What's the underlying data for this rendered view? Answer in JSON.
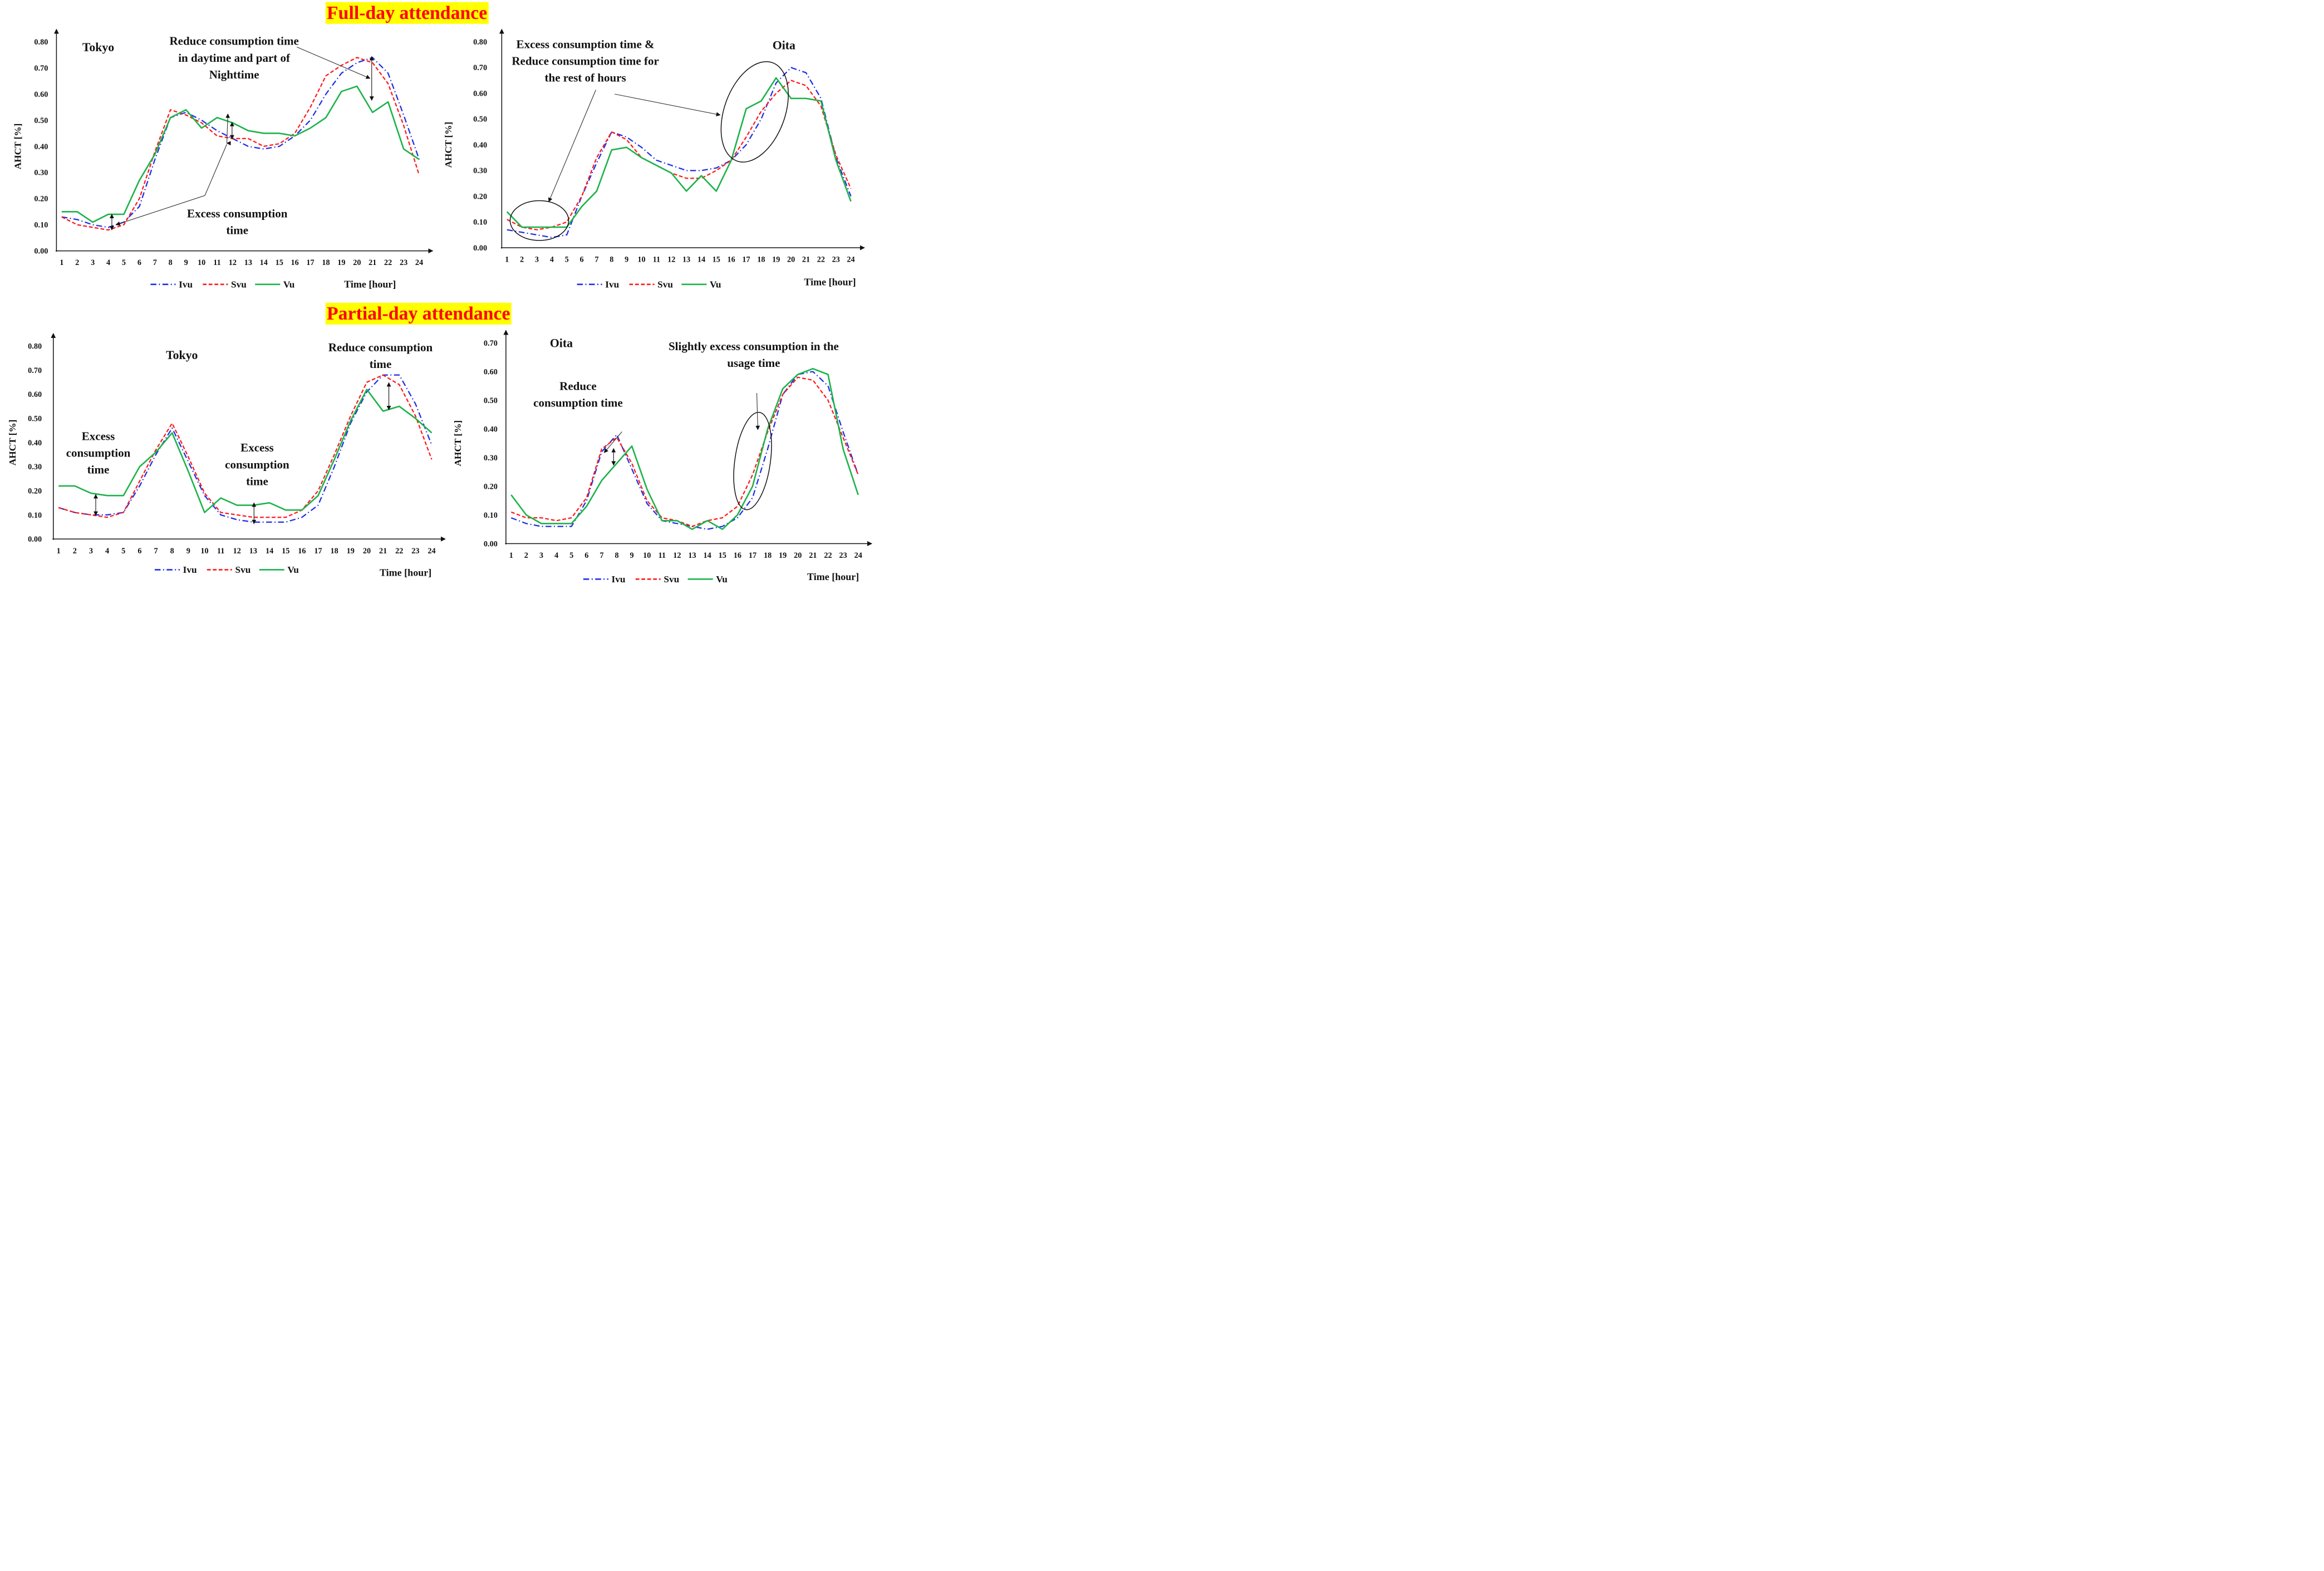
{
  "headers": {
    "full_day": "Full-day attendance",
    "partial_day": "Partial-day attendance"
  },
  "legend": {
    "ivu": "Ivu",
    "svu": "Svu",
    "vu": "Vu"
  },
  "colors": {
    "ivu": "#1f2ee8",
    "svu": "#ff1a1a",
    "vu": "#1db34a"
  },
  "chart_data": [
    {
      "type": "line",
      "title": "Tokyo",
      "group": "Full-day attendance",
      "ylabel": "AHCT [%]",
      "xlabel": "Time [hour]",
      "x": [
        1,
        2,
        3,
        4,
        5,
        6,
        7,
        8,
        9,
        10,
        11,
        12,
        13,
        14,
        15,
        16,
        17,
        18,
        19,
        20,
        21,
        22,
        23,
        24
      ],
      "ylim": [
        0,
        0.8
      ],
      "yticks": [
        "0.00",
        "0.10",
        "0.20",
        "0.30",
        "0.40",
        "0.50",
        "0.60",
        "0.70",
        "0.80"
      ],
      "series": [
        {
          "name": "Ivu",
          "values": [
            0.13,
            0.12,
            0.1,
            0.09,
            0.11,
            0.17,
            0.35,
            0.51,
            0.53,
            0.5,
            0.46,
            0.43,
            0.4,
            0.39,
            0.4,
            0.44,
            0.5,
            0.6,
            0.68,
            0.72,
            0.74,
            0.68,
            0.52,
            0.35
          ]
        },
        {
          "name": "Svu",
          "values": [
            0.13,
            0.1,
            0.09,
            0.08,
            0.1,
            0.2,
            0.38,
            0.54,
            0.52,
            0.49,
            0.44,
            0.43,
            0.43,
            0.4,
            0.41,
            0.45,
            0.55,
            0.67,
            0.71,
            0.74,
            0.72,
            0.64,
            0.48,
            0.29
          ]
        },
        {
          "name": "Vu",
          "values": [
            0.15,
            0.15,
            0.11,
            0.14,
            0.14,
            0.27,
            0.37,
            0.51,
            0.54,
            0.47,
            0.51,
            0.49,
            0.46,
            0.45,
            0.45,
            0.44,
            0.47,
            0.51,
            0.61,
            0.63,
            0.53,
            0.57,
            0.39,
            0.35
          ]
        }
      ],
      "annotations": [
        {
          "lines": [
            "Reduce consumption time",
            "in daytime and part of",
            "Nighttime"
          ]
        },
        {
          "lines": [
            "Excess consumption",
            "time"
          ]
        }
      ]
    },
    {
      "type": "line",
      "title": "Oita",
      "group": "Full-day attendance",
      "ylabel": "AHCT [%]",
      "xlabel": "Time [hour]",
      "x": [
        1,
        2,
        3,
        4,
        5,
        6,
        7,
        8,
        9,
        10,
        11,
        12,
        13,
        14,
        15,
        16,
        17,
        18,
        19,
        20,
        21,
        22,
        23,
        24
      ],
      "ylim": [
        0,
        0.8
      ],
      "yticks": [
        "0.00",
        "0.10",
        "0.20",
        "0.30",
        "0.40",
        "0.50",
        "0.60",
        "0.70",
        "0.80"
      ],
      "series": [
        {
          "name": "Ivu",
          "values": [
            0.07,
            0.06,
            0.05,
            0.04,
            0.05,
            0.2,
            0.33,
            0.45,
            0.43,
            0.39,
            0.34,
            0.32,
            0.3,
            0.3,
            0.31,
            0.34,
            0.4,
            0.5,
            0.64,
            0.7,
            0.68,
            0.58,
            0.35,
            0.2
          ]
        },
        {
          "name": "Svu",
          "values": [
            0.11,
            0.08,
            0.07,
            0.08,
            0.1,
            0.2,
            0.35,
            0.45,
            0.42,
            0.35,
            0.32,
            0.29,
            0.27,
            0.27,
            0.3,
            0.34,
            0.43,
            0.53,
            0.6,
            0.65,
            0.63,
            0.55,
            0.36,
            0.23
          ]
        },
        {
          "name": "Vu",
          "values": [
            0.14,
            0.08,
            0.08,
            0.08,
            0.08,
            0.16,
            0.22,
            0.38,
            0.39,
            0.35,
            0.32,
            0.29,
            0.22,
            0.28,
            0.22,
            0.34,
            0.54,
            0.57,
            0.66,
            0.58,
            0.58,
            0.57,
            0.34,
            0.18
          ]
        }
      ],
      "annotations": [
        {
          "lines": [
            "Excess consumption time &",
            "Reduce consumption time for",
            "the rest of hours"
          ]
        }
      ]
    },
    {
      "type": "line",
      "title": "Tokyo",
      "group": "Partial-day attendance",
      "ylabel": "AHCT [%]",
      "xlabel": "Time [hour]",
      "x": [
        1,
        2,
        3,
        4,
        5,
        6,
        7,
        8,
        9,
        10,
        11,
        12,
        13,
        14,
        15,
        16,
        17,
        18,
        19,
        20,
        21,
        22,
        23,
        24
      ],
      "ylim": [
        0,
        0.8
      ],
      "yticks": [
        "0.00",
        "0.10",
        "0.20",
        "0.30",
        "0.40",
        "0.50",
        "0.60",
        "0.70",
        "0.80"
      ],
      "series": [
        {
          "name": "Ivu",
          "values": [
            0.13,
            0.11,
            0.1,
            0.1,
            0.11,
            0.22,
            0.35,
            0.46,
            0.32,
            0.18,
            0.1,
            0.08,
            0.07,
            0.07,
            0.07,
            0.09,
            0.14,
            0.3,
            0.48,
            0.61,
            0.68,
            0.68,
            0.56,
            0.39
          ]
        },
        {
          "name": "Svu",
          "values": [
            0.13,
            0.11,
            0.1,
            0.09,
            0.11,
            0.24,
            0.37,
            0.48,
            0.34,
            0.19,
            0.11,
            0.1,
            0.09,
            0.09,
            0.09,
            0.12,
            0.2,
            0.35,
            0.51,
            0.65,
            0.68,
            0.64,
            0.51,
            0.33
          ]
        },
        {
          "name": "Vu",
          "values": [
            0.22,
            0.22,
            0.19,
            0.18,
            0.18,
            0.3,
            0.36,
            0.44,
            0.28,
            0.11,
            0.17,
            0.14,
            0.14,
            0.15,
            0.12,
            0.12,
            0.18,
            0.33,
            0.49,
            0.62,
            0.53,
            0.55,
            0.5,
            0.44
          ]
        }
      ],
      "annotations": [
        {
          "lines": [
            "Excess",
            "consumption",
            "time"
          ]
        },
        {
          "lines": [
            "Excess",
            "consumption",
            "time"
          ]
        },
        {
          "lines": [
            "Reduce consumption",
            "time"
          ]
        }
      ]
    },
    {
      "type": "line",
      "title": "Oita",
      "group": "Partial-day attendance",
      "ylabel": "AHCT [%]",
      "xlabel": "Time [hour]",
      "x": [
        1,
        2,
        3,
        4,
        5,
        6,
        7,
        8,
        9,
        10,
        11,
        12,
        13,
        14,
        15,
        16,
        17,
        18,
        19,
        20,
        21,
        22,
        23,
        24
      ],
      "ylim": [
        0,
        0.7
      ],
      "yticks": [
        "0.00",
        "0.10",
        "0.20",
        "0.30",
        "0.40",
        "0.50",
        "0.60",
        "0.70"
      ],
      "series": [
        {
          "name": "Ivu",
          "values": [
            0.09,
            0.07,
            0.06,
            0.06,
            0.06,
            0.15,
            0.32,
            0.38,
            0.26,
            0.14,
            0.08,
            0.07,
            0.06,
            0.05,
            0.06,
            0.09,
            0.16,
            0.33,
            0.52,
            0.59,
            0.6,
            0.55,
            0.39,
            0.24
          ]
        },
        {
          "name": "Svu",
          "values": [
            0.11,
            0.09,
            0.09,
            0.08,
            0.09,
            0.16,
            0.33,
            0.37,
            0.28,
            0.15,
            0.09,
            0.08,
            0.06,
            0.08,
            0.09,
            0.13,
            0.24,
            0.39,
            0.52,
            0.58,
            0.57,
            0.5,
            0.37,
            0.24
          ]
        },
        {
          "name": "Vu",
          "values": [
            0.17,
            0.1,
            0.07,
            0.07,
            0.07,
            0.13,
            0.22,
            0.28,
            0.34,
            0.19,
            0.08,
            0.08,
            0.05,
            0.08,
            0.05,
            0.1,
            0.2,
            0.4,
            0.54,
            0.59,
            0.61,
            0.59,
            0.33,
            0.17
          ]
        }
      ],
      "annotations": [
        {
          "lines": [
            "Reduce",
            "consumption time"
          ]
        },
        {
          "lines": [
            "Slightly excess consumption in the",
            "usage time"
          ]
        }
      ]
    }
  ]
}
